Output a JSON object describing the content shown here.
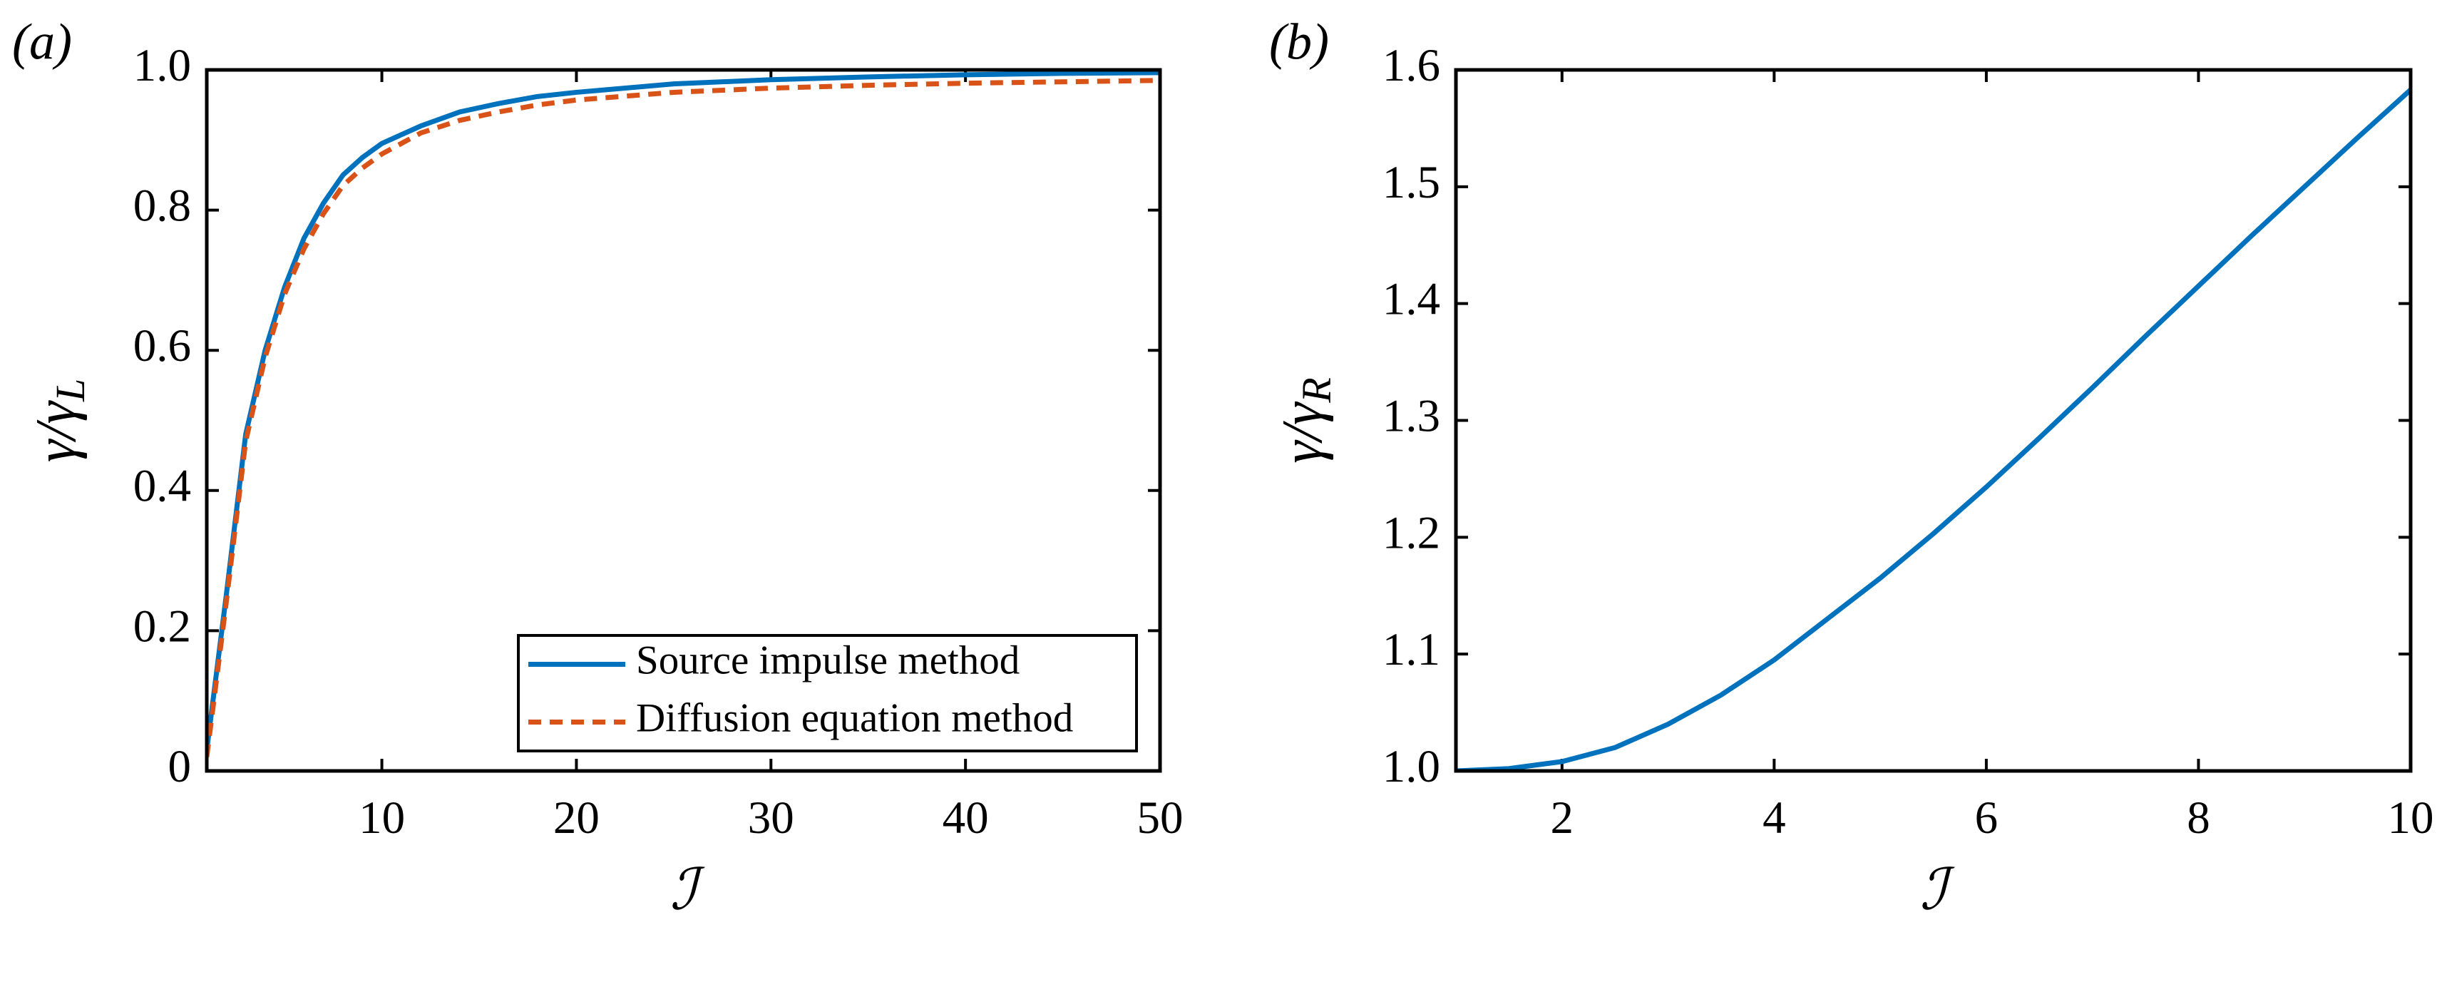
{
  "chart_data": [
    {
      "type": "line",
      "panel": "(a)",
      "xlabel": "ℐ",
      "ylabel": {
        "main": "γ/γ",
        "sub": "L"
      },
      "xlim": [
        1,
        50
      ],
      "xticks": [
        10,
        20,
        30,
        40,
        50
      ],
      "ylim": [
        0,
        1
      ],
      "yticks": [
        0,
        0.2,
        0.4,
        0.6,
        0.8,
        {
          "value": 1,
          "label": "1.0"
        }
      ],
      "legend": "lower right",
      "x": [
        1,
        2,
        3,
        4,
        5,
        6,
        7,
        8,
        9,
        10,
        12,
        14,
        16,
        18,
        20,
        25,
        30,
        35,
        40,
        45,
        50
      ],
      "series": [
        {
          "name": "Source impulse method",
          "color": "#0072BD",
          "style": "solid",
          "values": [
            0.03,
            0.25,
            0.48,
            0.6,
            0.69,
            0.76,
            0.81,
            0.85,
            0.875,
            0.895,
            0.92,
            0.94,
            0.952,
            0.962,
            0.968,
            0.98,
            0.986,
            0.99,
            0.993,
            0.995,
            0.996
          ]
        },
        {
          "name": "Diffusion equation method",
          "color": "#D95319",
          "style": "dashed",
          "values": [
            0.02,
            0.24,
            0.47,
            0.59,
            0.68,
            0.745,
            0.795,
            0.835,
            0.86,
            0.88,
            0.91,
            0.928,
            0.94,
            0.95,
            0.957,
            0.968,
            0.974,
            0.978,
            0.981,
            0.983,
            0.985
          ]
        }
      ]
    },
    {
      "type": "line",
      "panel": "(b)",
      "xlabel": "ℐ",
      "ylabel": {
        "main": "γ/γ",
        "sub": "R"
      },
      "xlim": [
        1,
        10
      ],
      "xticks": [
        2,
        4,
        6,
        8,
        10
      ],
      "ylim": [
        1,
        1.6
      ],
      "yticks": [
        {
          "value": 1,
          "label": "1.0"
        },
        1.1,
        1.2,
        1.3,
        1.4,
        1.5,
        1.6
      ],
      "x": [
        1,
        1.5,
        2,
        2.5,
        3,
        3.5,
        4,
        4.5,
        5,
        5.5,
        6,
        6.5,
        7,
        7.5,
        8,
        8.5,
        9,
        9.5,
        10
      ],
      "series": [
        {
          "name": null,
          "color": "#0072BD",
          "style": "solid",
          "values": [
            1.0,
            1.002,
            1.008,
            1.02,
            1.04,
            1.065,
            1.095,
            1.13,
            1.165,
            1.203,
            1.243,
            1.285,
            1.328,
            1.372,
            1.415,
            1.458,
            1.5,
            1.542,
            1.583
          ]
        }
      ]
    }
  ]
}
